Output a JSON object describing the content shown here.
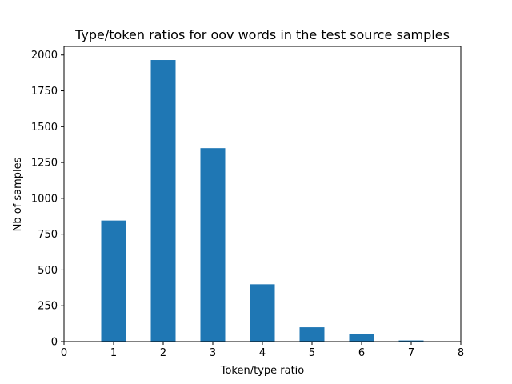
{
  "chart_data": {
    "type": "bar",
    "title": "Type/token ratios for oov words in the test source samples",
    "xlabel": "Token/type ratio",
    "ylabel": "Nb of samples",
    "x": [
      1,
      2,
      3,
      4,
      5,
      6,
      7
    ],
    "values": [
      845,
      1965,
      1350,
      400,
      100,
      55,
      8
    ],
    "xlim": [
      0,
      8
    ],
    "ylim": [
      0,
      2060
    ],
    "xticks": [
      0,
      1,
      2,
      3,
      4,
      5,
      6,
      7,
      8
    ],
    "yticks": [
      0,
      250,
      500,
      750,
      1000,
      1250,
      1500,
      1750,
      2000
    ],
    "bar_width": 0.5,
    "grid": false,
    "legend": "none",
    "colors": {
      "bar": "#1f77b4",
      "axis": "#000000",
      "background": "#ffffff"
    }
  }
}
